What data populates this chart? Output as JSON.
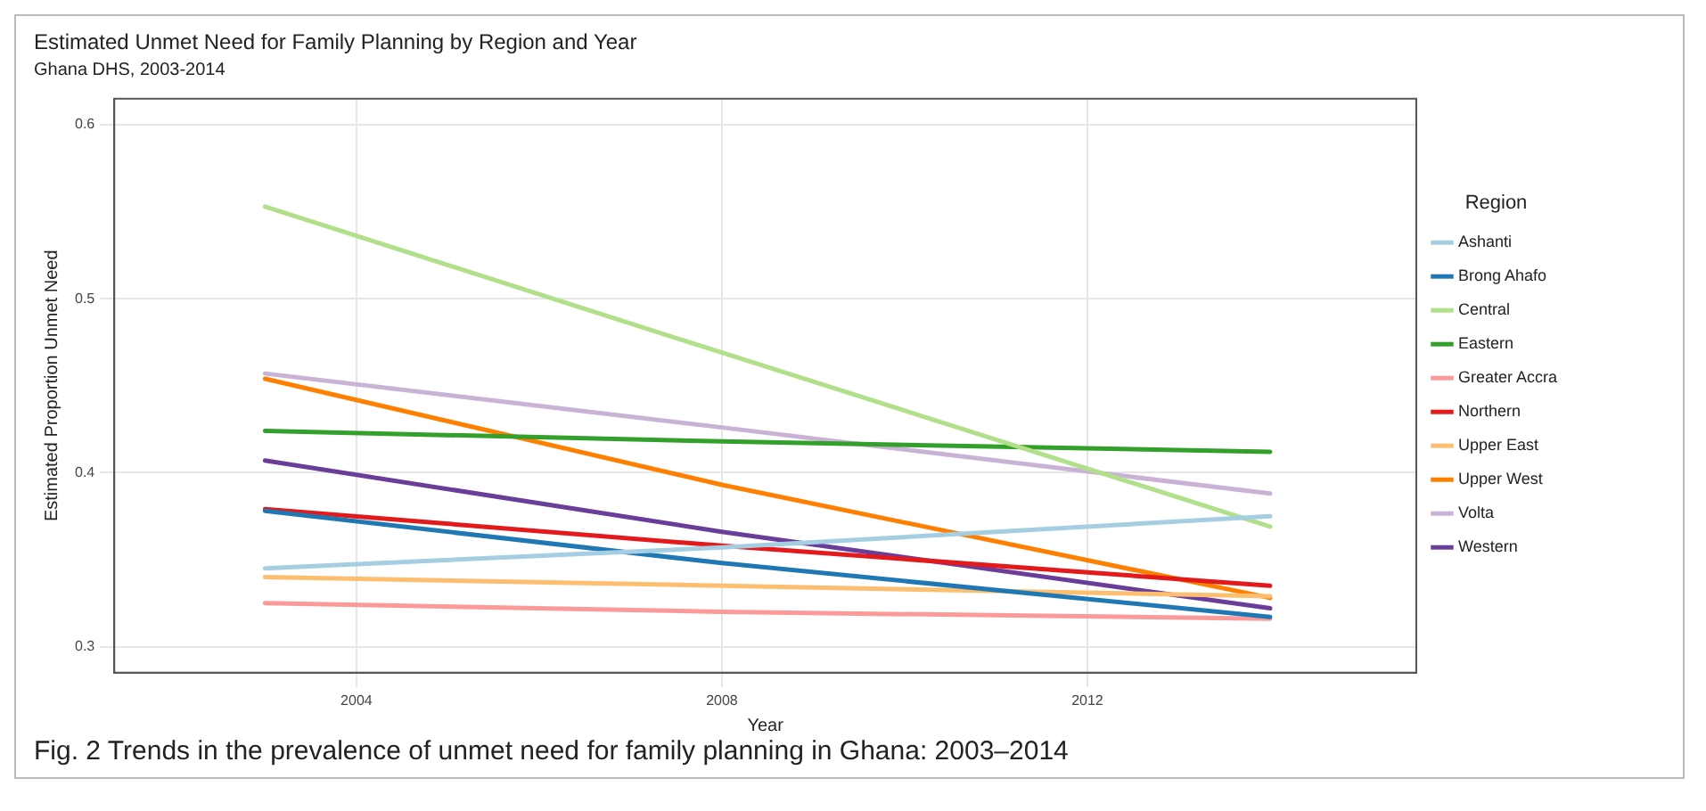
{
  "chart_data": {
    "type": "line",
    "title": "Estimated Unmet Need for Family Planning by Region and Year",
    "subtitle": "Ghana DHS, 2003-2014",
    "xlabel": "Year",
    "ylabel": "Estimated Proportion Unmet Need",
    "legend_title": "Region",
    "legend": "right",
    "grid": true,
    "marker": "none",
    "line_style": "solid",
    "x": [
      2003,
      2008,
      2014
    ],
    "xlim": [
      2001.35,
      2015.6
    ],
    "xticks": [
      2004,
      2008,
      2012
    ],
    "ylim": [
      0.285,
      0.615
    ],
    "yticks": [
      0.3,
      0.4,
      0.5,
      0.6
    ],
    "series": [
      {
        "name": "Ashanti",
        "color": "#a6cee3",
        "values": [
          0.345,
          0.357,
          0.375
        ]
      },
      {
        "name": "Brong Ahafo",
        "color": "#1f78b4",
        "values": [
          0.378,
          0.348,
          0.317
        ]
      },
      {
        "name": "Central",
        "color": "#b2df8a",
        "values": [
          0.553,
          0.469,
          0.369
        ]
      },
      {
        "name": "Eastern",
        "color": "#33a02c",
        "values": [
          0.424,
          0.418,
          0.412
        ]
      },
      {
        "name": "Greater Accra",
        "color": "#fb9a99",
        "values": [
          0.325,
          0.32,
          0.316
        ]
      },
      {
        "name": "Northern",
        "color": "#e31a1c",
        "values": [
          0.379,
          0.358,
          0.335
        ]
      },
      {
        "name": "Upper East",
        "color": "#fdbf6f",
        "values": [
          0.34,
          0.335,
          0.329
        ]
      },
      {
        "name": "Upper West",
        "color": "#ff7f00",
        "values": [
          0.454,
          0.393,
          0.328
        ]
      },
      {
        "name": "Volta",
        "color": "#cab2d6",
        "values": [
          0.457,
          0.426,
          0.388
        ]
      },
      {
        "name": "Western",
        "color": "#6a3d9a",
        "values": [
          0.407,
          0.366,
          0.322
        ]
      }
    ],
    "annotations": [
      "Fig. 2 Trends in the prevalence of unmet need for family planning in Ghana: 2003–2014"
    ]
  }
}
